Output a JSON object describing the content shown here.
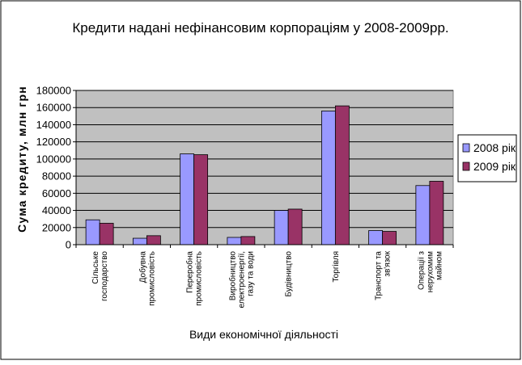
{
  "chart_data": {
    "type": "bar",
    "title": "Кредити надані нефінансовим корпораціям у 2008-2009рр.",
    "xlabel": "Види економічної діяльності",
    "ylabel": "Сума кредиту, млн грн",
    "ylim": [
      0,
      180000
    ],
    "yticks": [
      0,
      20000,
      40000,
      60000,
      80000,
      100000,
      120000,
      140000,
      160000,
      180000
    ],
    "grid": true,
    "legend_position": "right",
    "categories": [
      [
        "Сільське",
        "господарство"
      ],
      [
        "Добувна",
        "промисловість"
      ],
      [
        "Переробна",
        "промисловість"
      ],
      [
        "Виробництво",
        "електроенергії,",
        "газу та води"
      ],
      [
        "Будівництво"
      ],
      [
        "Торгівля"
      ],
      [
        "Транспорт та",
        "зв'язок"
      ],
      [
        "Операції з",
        "нерухомим",
        "майном"
      ]
    ],
    "series": [
      {
        "name": "2008 рік",
        "color": "#9999ff",
        "values": [
          29000,
          7500,
          106000,
          8500,
          40000,
          156000,
          16500,
          69000
        ]
      },
      {
        "name": "2009 рік",
        "color": "#993366",
        "values": [
          25000,
          10500,
          105000,
          9500,
          41500,
          162000,
          15500,
          74000
        ]
      }
    ],
    "plot_background": "#c0c0c0"
  }
}
